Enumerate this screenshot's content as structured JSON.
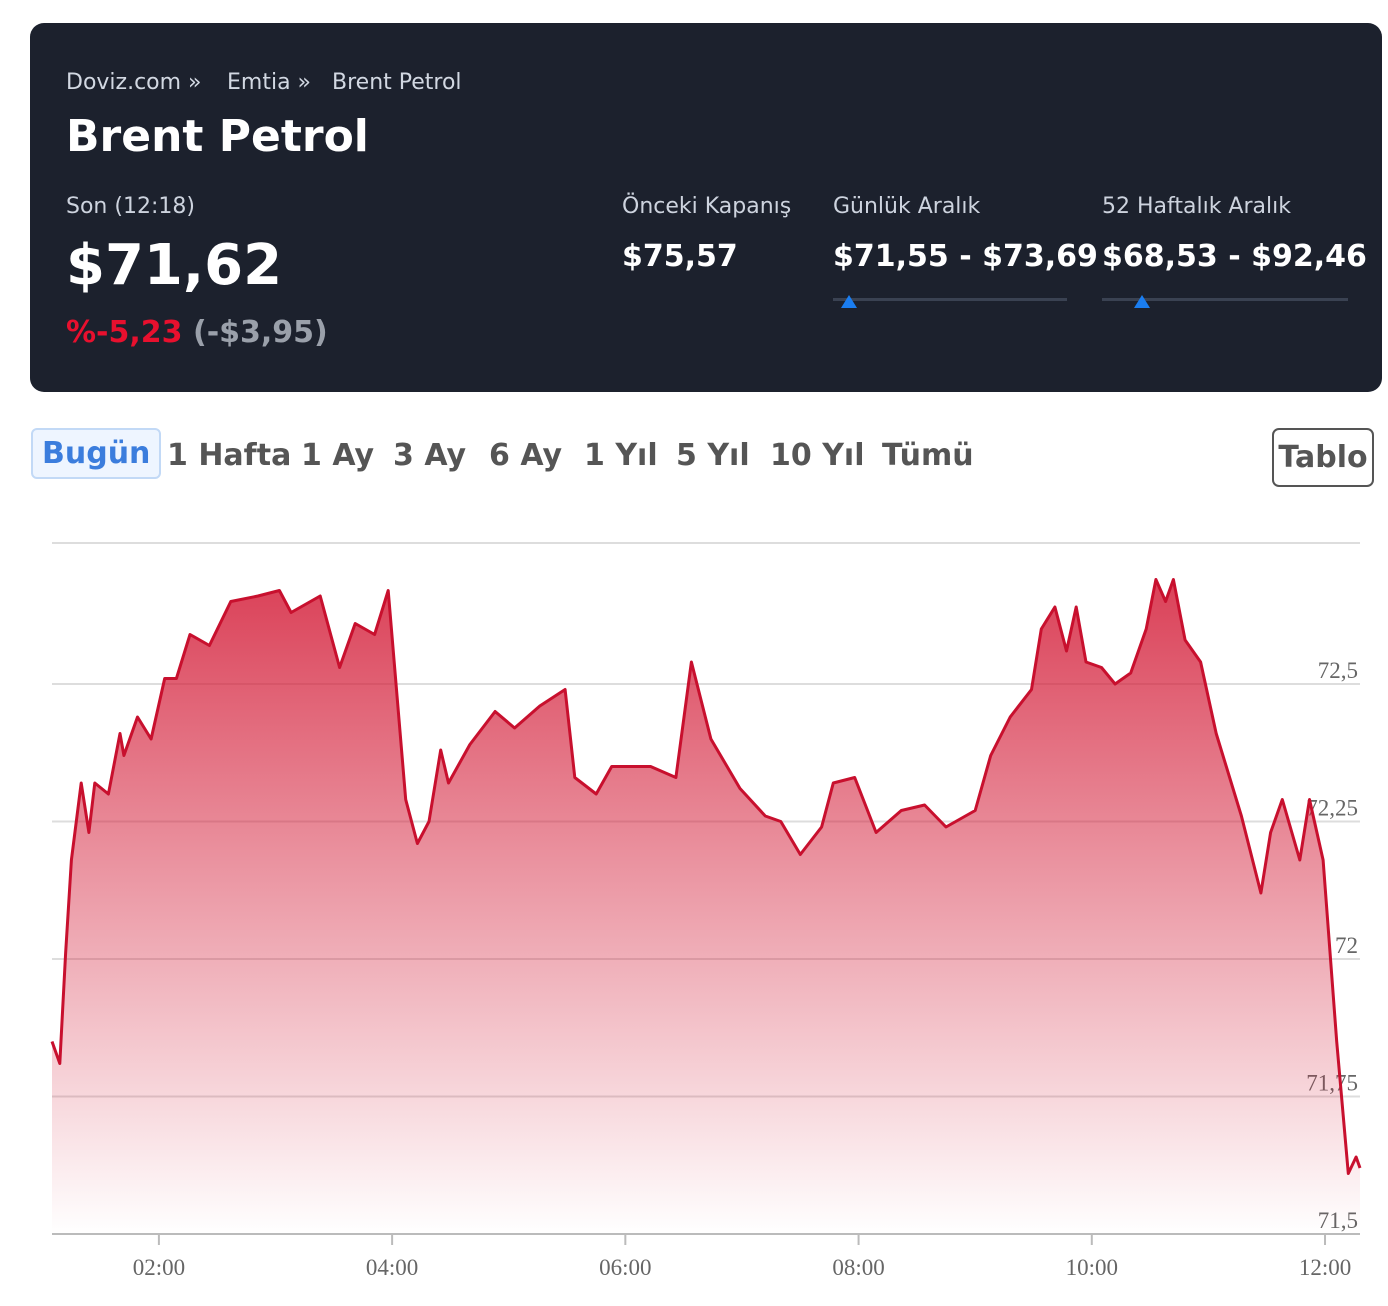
{
  "header": {
    "breadcrumb": [
      "Doviz.com »",
      "Emtia »",
      "Brent Petrol"
    ],
    "title": "Brent Petrol",
    "last_label": "Son (12:18)",
    "price": "$71,62",
    "change_pct": "%-5,23",
    "change_abs": "(-$3,95)",
    "stats": [
      {
        "label": "Önceki Kapanış",
        "value": "$75,57"
      },
      {
        "label": "Günlük Aralık",
        "value": "$71,55 - $73,69"
      },
      {
        "label": "52 Haftalık Aralık",
        "value": "$68,53 - $92,46"
      }
    ]
  },
  "tabs": [
    "Bugün",
    "1 Hafta",
    "1 Ay",
    "3 Ay",
    "6 Ay",
    "1 Yıl",
    "5 Yıl",
    "10 Yıl",
    "Tümü"
  ],
  "active_tab": 0,
  "button": "Tablo",
  "chart_data": {
    "type": "area",
    "x": [
      "01:05",
      "01:09",
      "01:12",
      "01:15",
      "01:20",
      "01:24",
      "01:27",
      "01:34",
      "01:40",
      "01:42",
      "01:49",
      "01:56",
      "02:03",
      "02:09",
      "02:16",
      "02:26",
      "02:37",
      "02:51",
      "03:02",
      "03:08",
      "03:23",
      "03:33",
      "03:41",
      "03:51",
      "03:58",
      "04:07",
      "04:13",
      "04:19",
      "04:25",
      "04:29",
      "04:40",
      "04:53",
      "05:03",
      "05:16",
      "05:29",
      "05:34",
      "05:45",
      "05:53",
      "06:13",
      "06:26",
      "06:34",
      "06:44",
      "06:59",
      "07:12",
      "07:20",
      "07:30",
      "07:41",
      "07:47",
      "07:58",
      "08:09",
      "08:22",
      "08:34",
      "08:45",
      "09:00",
      "09:08",
      "09:18",
      "09:29",
      "09:34",
      "09:41",
      "09:47",
      "09:52",
      "09:57",
      "10:05",
      "10:12",
      "10:20",
      "10:28",
      "10:33",
      "10:38",
      "10:42",
      "10:48",
      "10:56",
      "11:04",
      "11:17",
      "11:27",
      "11:32",
      "11:38",
      "11:47",
      "11:52",
      "11:59",
      "12:06",
      "12:12",
      "12:16",
      "12:18"
    ],
    "values": [
      71.85,
      71.81,
      72.01,
      72.18,
      72.32,
      72.23,
      72.32,
      72.3,
      72.41,
      72.37,
      72.44,
      72.4,
      72.51,
      72.51,
      72.59,
      72.57,
      72.65,
      72.66,
      72.67,
      72.63,
      72.66,
      72.53,
      72.61,
      72.59,
      72.67,
      72.29,
      72.21,
      72.25,
      72.38,
      72.32,
      72.39,
      72.45,
      72.42,
      72.46,
      72.49,
      72.33,
      72.3,
      72.35,
      72.35,
      72.33,
      72.54,
      72.4,
      72.31,
      72.26,
      72.25,
      72.19,
      72.24,
      72.32,
      72.33,
      72.23,
      72.27,
      72.28,
      72.24,
      72.27,
      72.37,
      72.44,
      72.49,
      72.6,
      72.64,
      72.56,
      72.64,
      72.54,
      72.53,
      72.5,
      72.52,
      72.6,
      72.69,
      72.65,
      72.69,
      72.58,
      72.54,
      72.41,
      72.26,
      72.12,
      72.23,
      72.29,
      72.18,
      72.29,
      72.18,
      71.85,
      71.61,
      71.64,
      71.62
    ],
    "color": "#c8102e",
    "xlim": [
      "01:05",
      "12:18"
    ],
    "ylim": [
      71.5,
      72.75
    ],
    "xticks": [
      "02:00",
      "04:00",
      "06:00",
      "08:00",
      "10:00",
      "12:00"
    ],
    "yticks": [
      {
        "value": 71.5,
        "label": "71,5"
      },
      {
        "value": 71.75,
        "label": "71,75"
      },
      72,
      {
        "value": 72.25,
        "label": "72,25"
      },
      {
        "value": 72.5,
        "label": "72,5"
      }
    ],
    "grid": true
  }
}
